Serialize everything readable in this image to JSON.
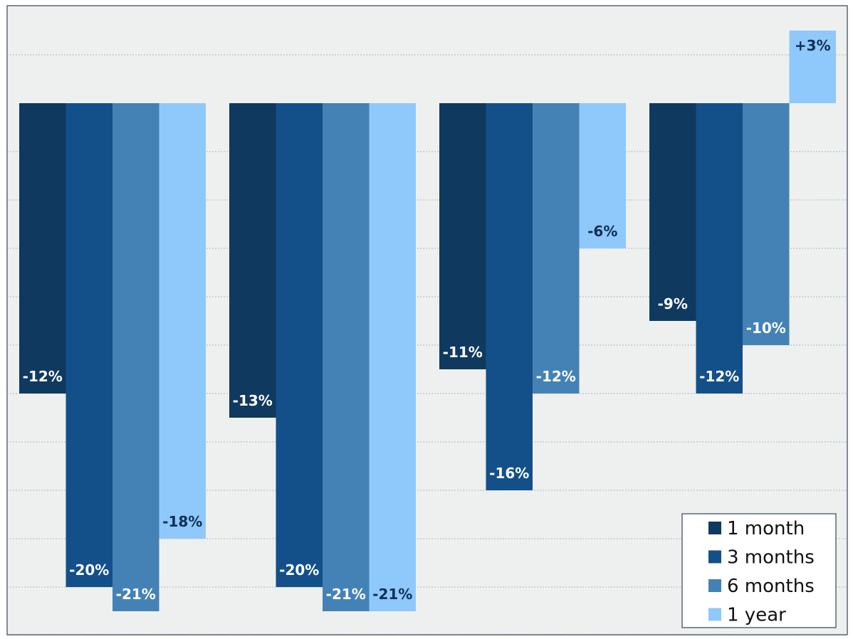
{
  "chart_data": {
    "type": "bar",
    "categories": [
      "",
      "",
      "",
      ""
    ],
    "series": [
      {
        "name": "1 month",
        "values": [
          -12,
          -13,
          -11,
          -9
        ],
        "color": "#10395f",
        "labels": [
          "-12%",
          "-13%",
          "-11%",
          "-9%"
        ]
      },
      {
        "name": "3 months",
        "values": [
          -20,
          -20,
          -16,
          -12
        ],
        "color": "#13508a",
        "labels": [
          "-20%",
          "-20%",
          "-16%",
          "-12%"
        ]
      },
      {
        "name": "6 months",
        "values": [
          -21,
          -21,
          -12,
          -10
        ],
        "color": "#4482b6",
        "labels": [
          "-21%",
          "-21%",
          "-12%",
          "-10%"
        ]
      },
      {
        "name": "1 year",
        "values": [
          -18,
          -21,
          -6,
          3
        ],
        "color": "#8fc8fb",
        "labels": [
          "-18%",
          "-21%",
          "-6%",
          "+3%"
        ]
      }
    ],
    "ylim": [
      -22,
      4
    ],
    "grid": true,
    "legend": "bottom-right",
    "colors": {
      "background": "#eef0f0",
      "grid": "#a9b6c3",
      "border": "#5a6773"
    }
  }
}
